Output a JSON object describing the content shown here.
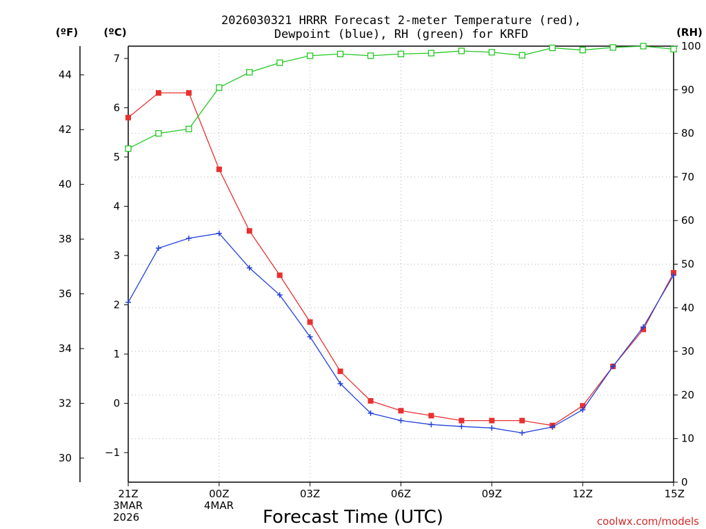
{
  "chart_data": {
    "type": "line",
    "title_line1": "2026030321 HRRR Forecast 2-meter Temperature (red),",
    "title_line2": "Dewpoint (blue), RH (green) for KRFD",
    "xlabel": "Forecast Time (UTC)",
    "credit": "coolwx.com/models",
    "unit_f": "(ºF)",
    "unit_c": "(ºC)",
    "unit_rh": "(RH)",
    "x_hours": [
      0,
      1,
      2,
      3,
      4,
      5,
      6,
      7,
      8,
      9,
      10,
      11,
      12,
      13,
      14,
      15,
      16,
      17,
      18
    ],
    "x_ticks": [
      {
        "hour": 0,
        "lines": [
          "21Z",
          "3MAR",
          "2026"
        ]
      },
      {
        "hour": 3,
        "lines": [
          "00Z",
          "4MAR"
        ]
      },
      {
        "hour": 6,
        "lines": [
          "03Z"
        ]
      },
      {
        "hour": 9,
        "lines": [
          "06Z"
        ]
      },
      {
        "hour": 12,
        "lines": [
          "09Z"
        ]
      },
      {
        "hour": 15,
        "lines": [
          "12Z"
        ]
      },
      {
        "hour": 18,
        "lines": [
          "15Z"
        ]
      }
    ],
    "celsius_axis": {
      "range": [
        -1.6,
        7.25
      ],
      "ticks": [
        -1,
        0,
        1,
        2,
        3,
        4,
        5,
        6,
        7
      ],
      "labels": [
        "−1",
        "0",
        "1",
        "2",
        "3",
        "4",
        "5",
        "6",
        "7"
      ]
    },
    "fahrenheit_axis": {
      "ticks": [
        30,
        32,
        34,
        36,
        38,
        40,
        42,
        44
      ],
      "labels": [
        "30",
        "32",
        "34",
        "36",
        "38",
        "40",
        "42",
        "44"
      ]
    },
    "rh_axis": {
      "range": [
        0,
        100
      ],
      "ticks": [
        0,
        10,
        20,
        30,
        40,
        50,
        60,
        70,
        80,
        90,
        100
      ],
      "labels": [
        "0",
        "10",
        "20",
        "30",
        "40",
        "50",
        "60",
        "70",
        "80",
        "90",
        "100"
      ]
    },
    "grid": true,
    "series": [
      {
        "name": "Temperature",
        "axis": "celsius",
        "color": "#e83030",
        "marker": "square-filled",
        "values": [
          5.8,
          6.3,
          6.3,
          4.75,
          3.5,
          2.6,
          1.65,
          0.65,
          0.05,
          -0.15,
          -0.25,
          -0.35,
          -0.35,
          -0.35,
          -0.45,
          -0.05,
          0.75,
          1.5,
          2.65
        ]
      },
      {
        "name": "Dewpoint",
        "axis": "celsius",
        "color": "#2040d8",
        "marker": "plus",
        "values": [
          2.05,
          3.15,
          3.35,
          3.45,
          2.75,
          2.2,
          1.35,
          0.4,
          -0.2,
          -0.35,
          -0.43,
          -0.47,
          -0.5,
          -0.6,
          -0.48,
          -0.13,
          0.75,
          1.55,
          2.6
        ]
      },
      {
        "name": "RH",
        "axis": "rh",
        "color": "#20c820",
        "marker": "square-open",
        "values": [
          76.5,
          80,
          81,
          90.5,
          94,
          96.2,
          97.8,
          98.2,
          97.8,
          98.2,
          98.4,
          98.9,
          98.6,
          97.9,
          99.6,
          99.1,
          99.7,
          100,
          99.3
        ]
      }
    ]
  }
}
